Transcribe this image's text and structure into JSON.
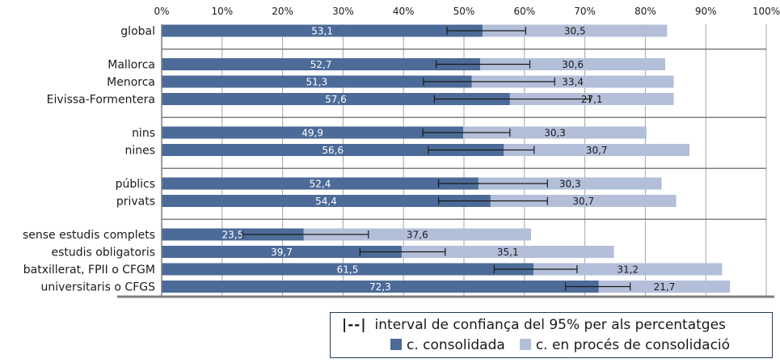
{
  "colors": {
    "consolidated": "#4d6b98",
    "in_process": "#b3bfd9",
    "grid": "#a6a6a6",
    "axis": "#7f7f7f",
    "error": "#1a1a1a",
    "text_light": "#ffffff",
    "text_dark": "#1a1a1a"
  },
  "chart_data": {
    "type": "bar",
    "orientation": "horizontal",
    "stacked": true,
    "xlim": [
      0,
      100
    ],
    "x_ticks": [
      "0%",
      "10%",
      "20%",
      "30%",
      "40%",
      "50%",
      "60%",
      "70%",
      "80%",
      "90%",
      "100%"
    ],
    "grid": true,
    "groups": [
      {
        "categories": [
          {
            "label": "global",
            "consolidated": 53.1,
            "in_process": 30.5,
            "ci": [
              47.2,
              60.2
            ],
            "label_consolidated": "53,1",
            "label_in_process": "30,5"
          }
        ]
      },
      {
        "categories": [
          {
            "label": "Mallorca",
            "consolidated": 52.7,
            "in_process": 30.6,
            "ci": [
              45.4,
              60.9
            ],
            "label_consolidated": "52,7",
            "label_in_process": "30,6"
          },
          {
            "label": "Menorca",
            "consolidated": 51.3,
            "in_process": 33.4,
            "ci": [
              43.3,
              65.0
            ],
            "label_consolidated": "51,3",
            "label_in_process": "33,4"
          },
          {
            "label": "Eivissa-Formentera",
            "consolidated": 57.6,
            "in_process": 27.1,
            "ci": [
              45.1,
              70.8
            ],
            "label_consolidated": "57,6",
            "label_in_process": "27,1"
          }
        ]
      },
      {
        "categories": [
          {
            "label": "nins",
            "consolidated": 49.9,
            "in_process": 30.3,
            "ci": [
              43.2,
              57.6
            ],
            "label_consolidated": "49,9",
            "label_in_process": "30,3"
          },
          {
            "label": "nines",
            "consolidated": 56.6,
            "in_process": 30.7,
            "ci": [
              44.1,
              61.6
            ],
            "label_consolidated": "56,6",
            "label_in_process": "30,7"
          }
        ]
      },
      {
        "categories": [
          {
            "label": "públics",
            "consolidated": 52.4,
            "in_process": 30.3,
            "ci": [
              45.8,
              63.8
            ],
            "label_consolidated": "52,4",
            "label_in_process": "30,3"
          },
          {
            "label": "privats",
            "consolidated": 54.4,
            "in_process": 30.7,
            "ci": [
              45.8,
              63.8
            ],
            "label_consolidated": "54,4",
            "label_in_process": "30,7"
          }
        ]
      },
      {
        "categories": [
          {
            "label": "sense estudis complets",
            "consolidated": 23.5,
            "in_process": 37.6,
            "ci": [
              13.4,
              34.2
            ],
            "label_consolidated": "23,5",
            "label_in_process": "37,6"
          },
          {
            "label": "estudis obligatoris",
            "consolidated": 39.7,
            "in_process": 35.1,
            "ci": [
              32.8,
              46.9
            ],
            "label_consolidated": "39,7",
            "label_in_process": "35,1"
          },
          {
            "label": "batxillerat, FPII o CFGM",
            "consolidated": 61.5,
            "in_process": 31.2,
            "ci": [
              55.0,
              68.7
            ],
            "label_consolidated": "61,5",
            "label_in_process": "31,2"
          },
          {
            "label": "universitaris o CFGS",
            "consolidated": 72.3,
            "in_process": 21.7,
            "ci": [
              66.8,
              77.5
            ],
            "label_consolidated": "72,3",
            "label_in_process": "21,7"
          }
        ]
      }
    ]
  },
  "legend": {
    "ci_symbol": "|--|",
    "ci_label": "interval de confiança del 95% per als percentatges",
    "consolidated_label": "c. consolidada",
    "in_process_label": "c. en procés de consolidació"
  }
}
